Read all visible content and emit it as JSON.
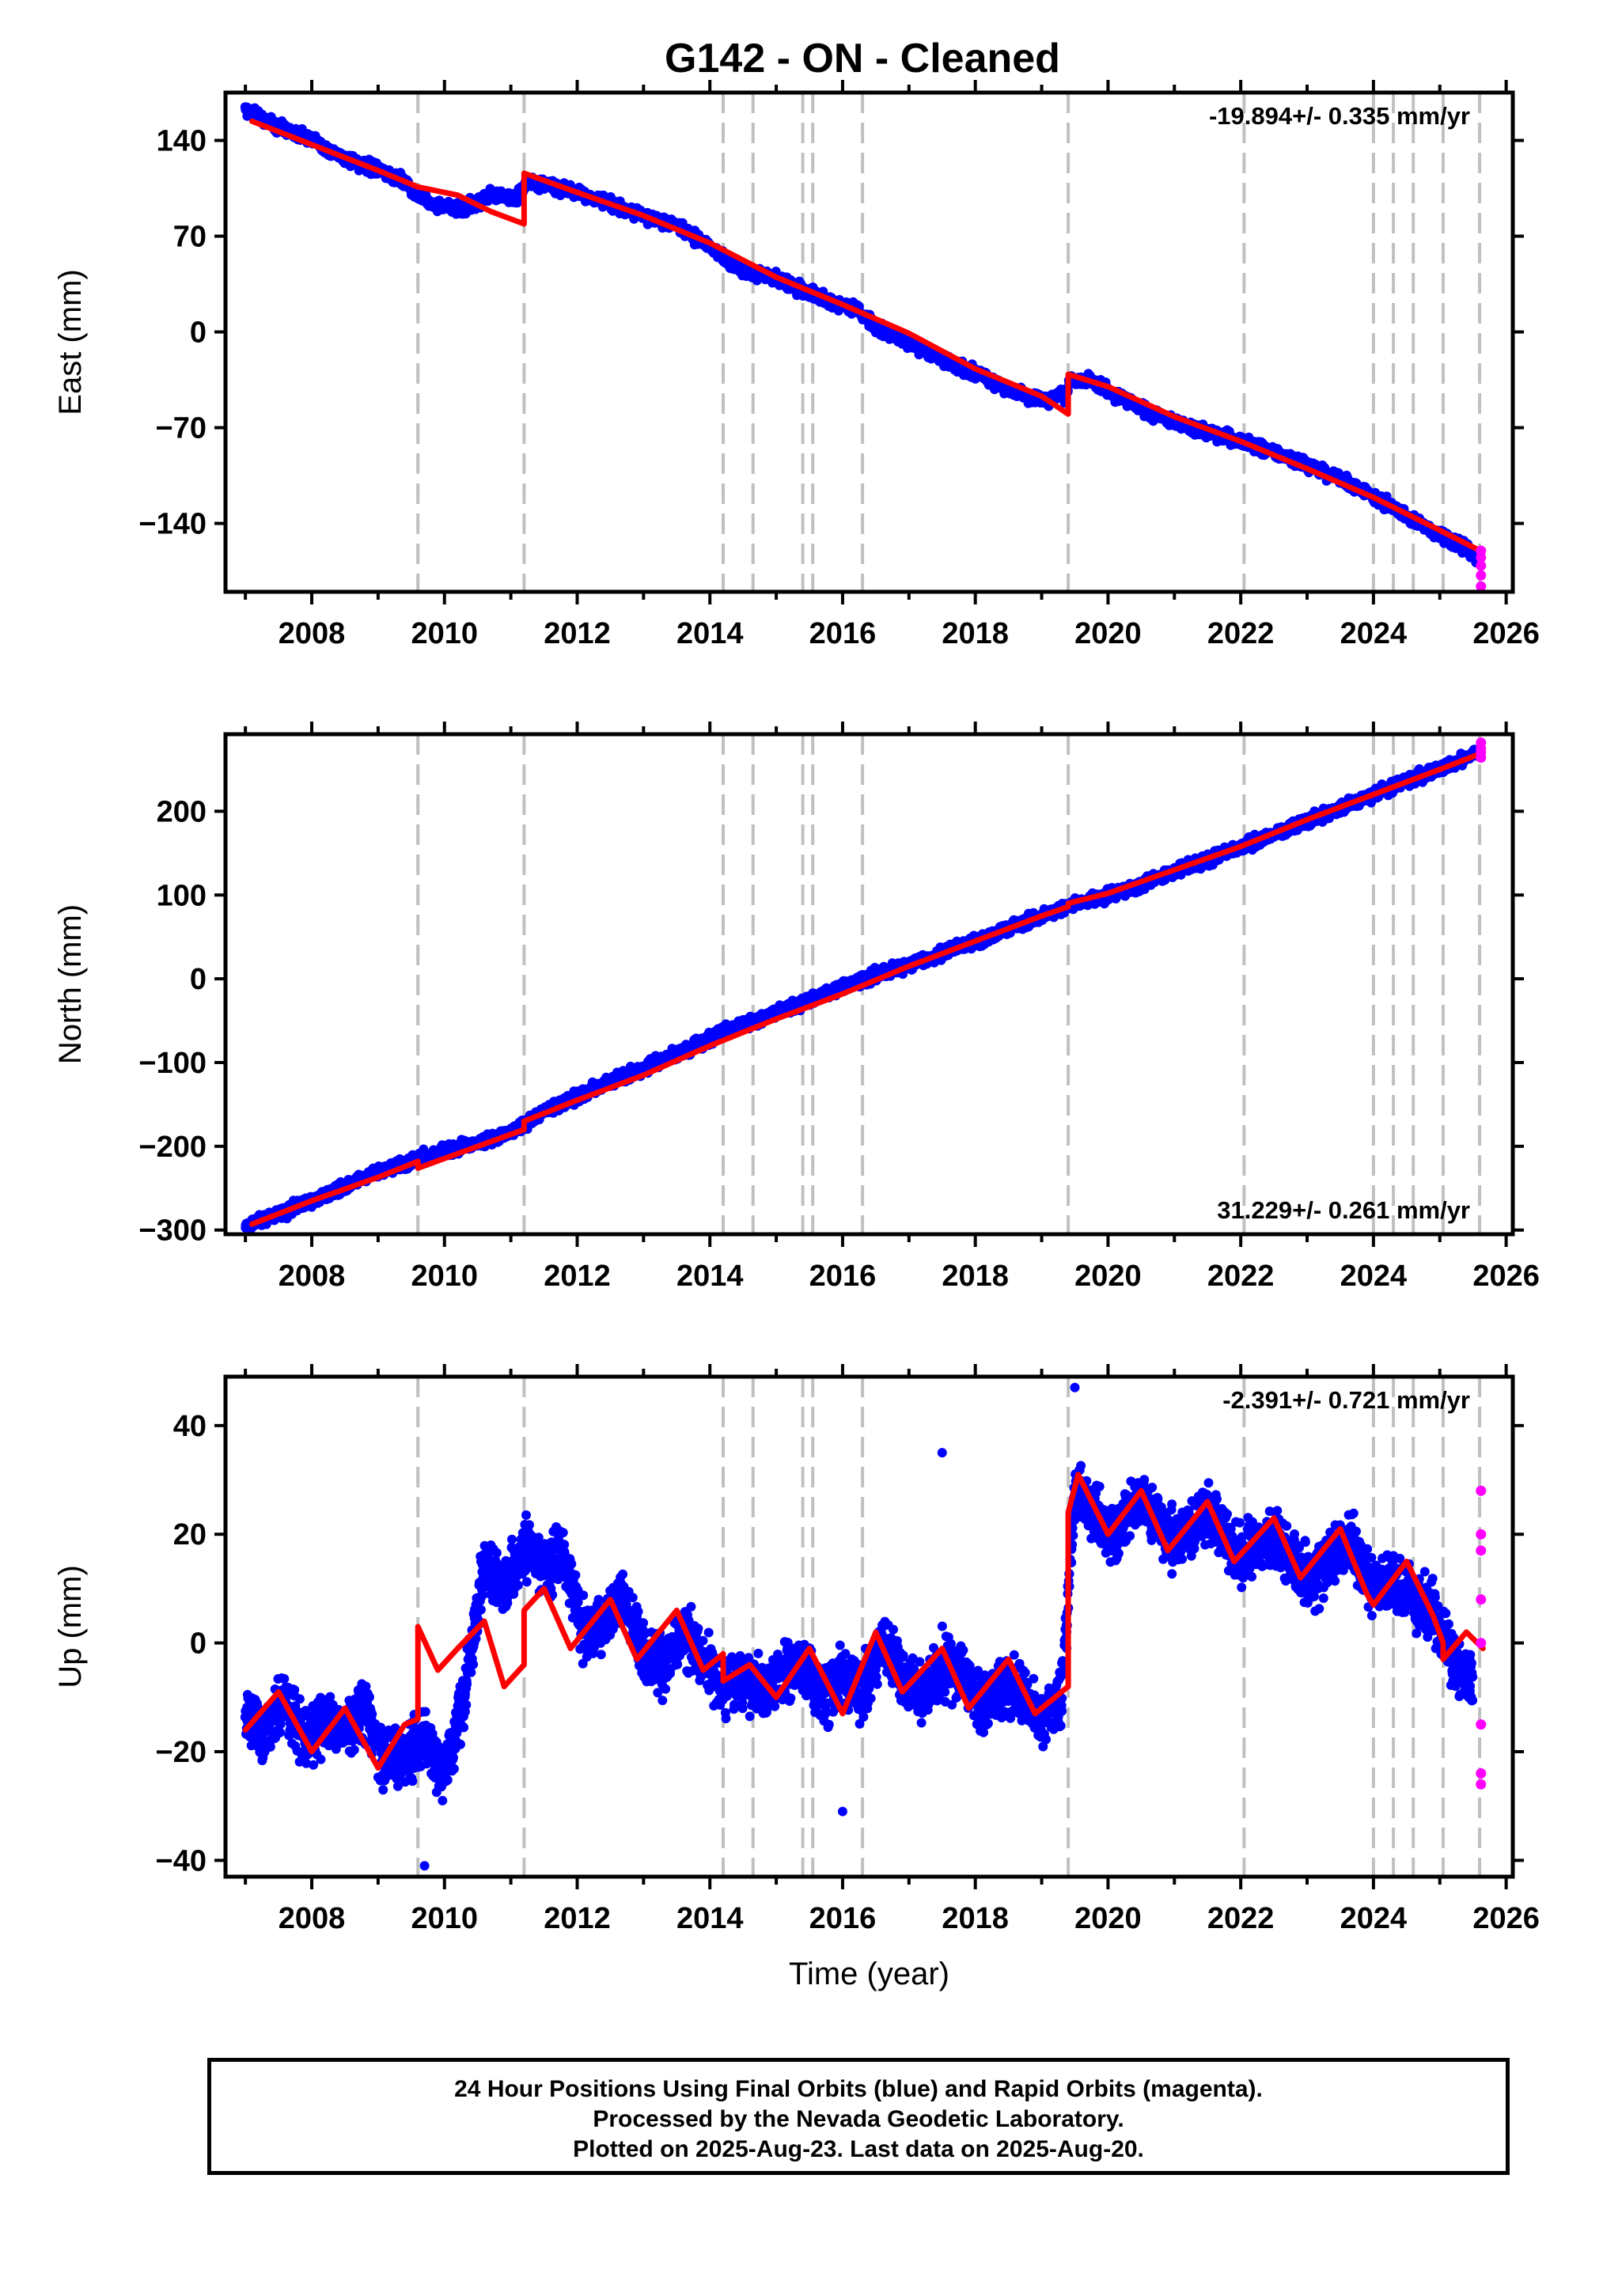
{
  "title": "G142  - ON - Cleaned",
  "xaxis": {
    "label": "Time (year)",
    "ticks": [
      "2008",
      "2010",
      "2012",
      "2014",
      "2016",
      "2018",
      "2020",
      "2022",
      "2024",
      "2026"
    ]
  },
  "footer": {
    "line1": "24 Hour Positions Using Final Orbits (blue) and Rapid Orbits (magenta).",
    "line2": "Processed by the Nevada Geodetic Laboratory.",
    "line3": "Plotted on 2025-Aug-23. Last data on 2025-Aug-20."
  },
  "colors": {
    "final_orbits": "#0000ff",
    "rapid_orbits": "#ff00ff",
    "model": "#ff0000",
    "event_lines": "#c0c0c0"
  },
  "chart_data": [
    {
      "type": "scatter",
      "ylabel": "East (mm)",
      "rate": "-19.894+/- 0.335 mm/yr",
      "xlim": [
        2006.7,
        2026.1
      ],
      "ylim": [
        -190,
        175
      ],
      "yticks": [
        140,
        70,
        0,
        -70,
        -140
      ],
      "ytick_labels": [
        "140",
        "70",
        "0",
        "−70",
        "−140"
      ],
      "event_lines": [
        2009.6,
        2011.2,
        2014.2,
        2014.65,
        2015.4,
        2015.55,
        2016.3,
        2019.4,
        2022.05,
        2024.0,
        2024.3,
        2024.6,
        2025.05,
        2025.6
      ],
      "series": [
        {
          "role": "final",
          "x": [
            2007.0,
            2007.5,
            2008.0,
            2008.5,
            2009.0,
            2009.4,
            2009.6,
            2009.9,
            2010.3,
            2010.7,
            2011.1,
            2011.25,
            2011.6,
            2012.0,
            2012.5,
            2013.0,
            2013.5,
            2014.0,
            2014.3,
            2014.7,
            2015.0,
            2015.4,
            2015.8,
            2016.2,
            2016.5,
            2017.0,
            2017.5,
            2018.0,
            2018.5,
            2019.0,
            2019.35,
            2019.45,
            2019.8,
            2020.2,
            2020.6,
            2021.0,
            2021.5,
            2022.0,
            2022.5,
            2023.0,
            2023.5,
            2024.0,
            2024.3,
            2024.6,
            2025.0,
            2025.3,
            2025.55
          ],
          "y": [
            163,
            150,
            140,
            127,
            118,
            110,
            100,
            92,
            90,
            100,
            98,
            110,
            107,
            102,
            93,
            85,
            77,
            63,
            50,
            42,
            40,
            30,
            22,
            18,
            3,
            -7,
            -20,
            -30,
            -42,
            -50,
            -46,
            -34,
            -37,
            -48,
            -58,
            -66,
            -73,
            -80,
            -88,
            -97,
            -108,
            -120,
            -128,
            -138,
            -148,
            -155,
            -163
          ]
        },
        {
          "role": "model",
          "segments": [
            {
              "x": [
                2007.1,
                2008.0,
                2009.0,
                2009.6
              ],
              "y": [
                154,
                137,
                118,
                106
              ]
            },
            {
              "x": [
                2009.6,
                2010.2,
                2010.7,
                2011.2
              ],
              "y": [
                106,
                100,
                88,
                79
              ]
            },
            {
              "x": [
                2011.2,
                2012.0,
                2013.0,
                2014.0,
                2015.0,
                2016.0,
                2017.0,
                2018.0,
                2019.0,
                2019.4
              ],
              "y": [
                116,
                102,
                85,
                65,
                40,
                20,
                -1,
                -27,
                -47,
                -60
              ]
            },
            {
              "x": [
                2019.4,
                2020.0,
                2021.0,
                2022.0,
                2023.0,
                2024.0,
                2025.0,
                2025.65
              ],
              "y": [
                -31,
                -40,
                -62,
                -80,
                -100,
                -121,
                -145,
                -161
              ]
            }
          ]
        },
        {
          "role": "rapid",
          "x": [
            2025.62,
            2025.62,
            2025.62,
            2025.62,
            2025.62
          ],
          "y": [
            -160,
            -165,
            -171,
            -178,
            -186
          ]
        }
      ]
    },
    {
      "type": "scatter",
      "ylabel": "North (mm)",
      "rate": "31.229+/- 0.261 mm/yr",
      "xlim": [
        2006.7,
        2026.1
      ],
      "ylim": [
        -305,
        292
      ],
      "yticks": [
        200,
        100,
        0,
        -100,
        -200,
        -300
      ],
      "ytick_labels": [
        "200",
        "100",
        "0",
        "−100",
        "−200",
        "−300"
      ],
      "event_lines": [
        2009.6,
        2011.2,
        2014.2,
        2014.65,
        2015.4,
        2015.55,
        2016.3,
        2019.4,
        2022.05,
        2024.0,
        2024.3,
        2024.6,
        2025.05,
        2025.6
      ],
      "series": [
        {
          "role": "final",
          "x": [
            2007.0,
            2007.5,
            2008.0,
            2008.5,
            2009.0,
            2009.6,
            2010.0,
            2010.5,
            2011.0,
            2011.5,
            2012.0,
            2012.5,
            2013.0,
            2013.5,
            2014.0,
            2014.5,
            2015.0,
            2015.5,
            2016.0,
            2016.5,
            2017.0,
            2017.5,
            2018.0,
            2018.5,
            2019.0,
            2019.5,
            2020.0,
            2020.5,
            2021.0,
            2021.5,
            2022.0,
            2022.5,
            2023.0,
            2023.5,
            2024.0,
            2024.5,
            2025.0,
            2025.55
          ],
          "y": [
            -295,
            -280,
            -265,
            -247,
            -232,
            -215,
            -205,
            -197,
            -183,
            -158,
            -140,
            -123,
            -107,
            -90,
            -72,
            -55,
            -40,
            -25,
            -10,
            5,
            17,
            30,
            45,
            60,
            75,
            88,
            100,
            112,
            128,
            143,
            157,
            172,
            188,
            204,
            220,
            236,
            250,
            270
          ]
        },
        {
          "role": "model",
          "segments": [
            {
              "x": [
                2007.1,
                2008.0,
                2009.0,
                2009.6
              ],
              "y": [
                -293,
                -265,
                -237,
                -218
              ]
            },
            {
              "x": [
                2009.6,
                2010.4,
                2011.2
              ],
              "y": [
                -226,
                -203,
                -180
              ]
            },
            {
              "x": [
                2011.2,
                2012.0,
                2013.0,
                2014.0,
                2015.0,
                2016.0,
                2017.0,
                2018.0,
                2019.0,
                2019.4
              ],
              "y": [
                -170,
                -145,
                -115,
                -80,
                -48,
                -18,
                15,
                45,
                75,
                86
              ]
            },
            {
              "x": [
                2019.4,
                2020.0,
                2021.0,
                2022.0,
                2023.0,
                2024.0,
                2025.0,
                2025.65
              ],
              "y": [
                90,
                102,
                130,
                158,
                190,
                220,
                250,
                270
              ]
            }
          ]
        },
        {
          "role": "rapid",
          "x": [
            2025.62,
            2025.62,
            2025.62,
            2025.62
          ],
          "y": [
            264,
            270,
            275,
            282
          ]
        }
      ]
    },
    {
      "type": "scatter",
      "ylabel": "Up (mm)",
      "rate": "-2.391+/- 0.721 mm/yr",
      "xlim": [
        2006.7,
        2026.1
      ],
      "ylim": [
        -43,
        49
      ],
      "yticks": [
        40,
        20,
        0,
        -20,
        -40
      ],
      "ytick_labels": [
        "40",
        "20",
        "0",
        "−20",
        "−40"
      ],
      "event_lines": [
        2009.6,
        2011.2,
        2014.2,
        2014.65,
        2015.4,
        2015.55,
        2016.3,
        2019.4,
        2022.05,
        2024.0,
        2024.3,
        2024.6,
        2025.05,
        2025.6
      ],
      "series": [
        {
          "role": "final",
          "x": [
            2007.0,
            2007.3,
            2007.6,
            2007.9,
            2008.2,
            2008.5,
            2008.8,
            2009.1,
            2009.4,
            2009.7,
            2010.0,
            2010.3,
            2010.6,
            2010.9,
            2011.2,
            2011.5,
            2011.8,
            2012.1,
            2012.4,
            2012.7,
            2013.0,
            2013.3,
            2013.6,
            2013.9,
            2014.2,
            2014.5,
            2014.8,
            2015.1,
            2015.4,
            2015.7,
            2016.0,
            2016.3,
            2016.6,
            2016.9,
            2017.2,
            2017.5,
            2017.8,
            2018.1,
            2018.4,
            2018.7,
            2019.0,
            2019.3,
            2019.5,
            2019.8,
            2020.1,
            2020.4,
            2020.7,
            2021.0,
            2021.3,
            2021.6,
            2021.9,
            2022.2,
            2022.5,
            2022.8,
            2023.1,
            2023.4,
            2023.7,
            2024.0,
            2024.3,
            2024.6,
            2024.9,
            2025.2,
            2025.5
          ],
          "y": [
            -12,
            -16,
            -10,
            -18,
            -14,
            -16,
            -12,
            -22,
            -20,
            -18,
            -24,
            -10,
            15,
            10,
            17,
            14,
            16,
            2,
            4,
            8,
            -2,
            -4,
            2,
            -3,
            -8,
            -6,
            -9,
            -5,
            -4,
            -10,
            -6,
            -9,
            0,
            -6,
            -10,
            -4,
            -6,
            -12,
            -8,
            -10,
            -14,
            -10,
            28,
            24,
            20,
            26,
            24,
            18,
            22,
            24,
            16,
            18,
            20,
            14,
            12,
            16,
            18,
            10,
            12,
            8,
            6,
            -4,
            -8
          ]
        },
        {
          "role": "model",
          "segments": [
            {
              "x": [
                2007.0,
                2007.5,
                2008.0,
                2008.5,
                2009.0,
                2009.4,
                2009.6
              ],
              "y": [
                -16,
                -9,
                -20,
                -12,
                -23,
                -15,
                -14
              ]
            },
            {
              "x": [
                2009.6,
                2009.9,
                2010.2,
                2010.6,
                2010.9,
                2011.2
              ],
              "y": [
                3,
                -5,
                -1,
                4,
                -8,
                -4
              ]
            },
            {
              "x": [
                2011.2,
                2011.5,
                2011.9,
                2012.5,
                2012.9,
                2013.5,
                2013.9,
                2014.2
              ],
              "y": [
                6,
                10,
                -1,
                8,
                -3,
                6,
                -5,
                -2
              ]
            },
            {
              "x": [
                2014.2,
                2014.6,
                2015.0,
                2015.5,
                2016.0,
                2016.5,
                2016.9,
                2017.5,
                2017.9,
                2018.5,
                2018.9,
                2019.4
              ],
              "y": [
                -7,
                -4,
                -10,
                -1,
                -13,
                2,
                -9,
                -1,
                -12,
                -3,
                -13,
                -8
              ]
            },
            {
              "x": [
                2019.4,
                2019.55,
                2020.0,
                2020.5,
                2020.9,
                2021.5,
                2021.9,
                2022.5,
                2022.9,
                2023.5,
                2023.9,
                2024.0,
                2024.5,
                2024.9,
                2025.05
              ],
              "y": [
                24,
                31,
                20,
                28,
                17,
                26,
                15,
                23,
                12,
                21,
                9,
                7,
                15,
                5,
                0
              ]
            },
            {
              "x": [
                2025.05,
                2025.4,
                2025.65
              ],
              "y": [
                -3,
                2,
                -1
              ]
            }
          ]
        },
        {
          "role": "rapid",
          "x": [
            2025.62,
            2025.62,
            2025.62,
            2025.62,
            2025.62,
            2025.62,
            2025.62,
            2025.62
          ],
          "y": [
            28,
            20,
            17,
            8,
            0,
            -15,
            -24,
            -26
          ]
        }
      ]
    }
  ]
}
